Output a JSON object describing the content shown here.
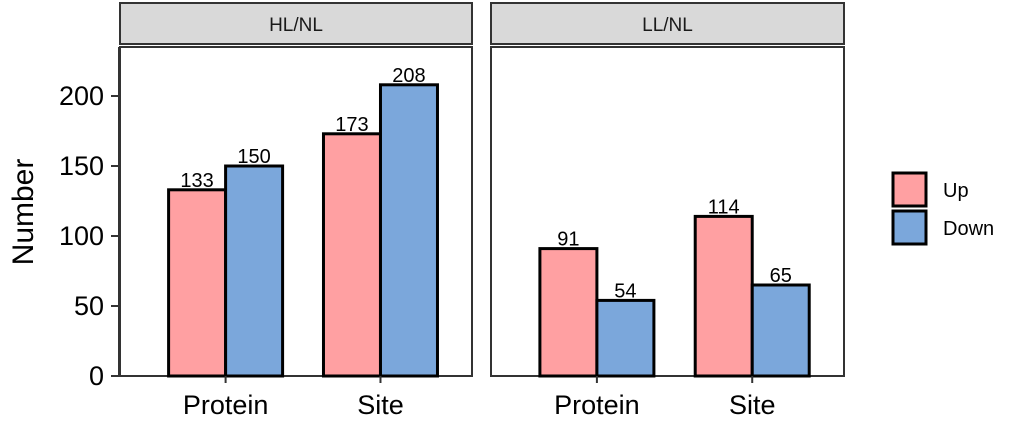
{
  "chart_data": {
    "type": "bar",
    "ylabel": "Number",
    "xlabel": "",
    "ylim": [
      0,
      235
    ],
    "yticks": [
      0,
      50,
      100,
      150,
      200
    ],
    "categories": [
      "Protein",
      "Site"
    ],
    "series_names": [
      "Up",
      "Down"
    ],
    "colors": {
      "Up": "#FFA0A2",
      "Down": "#7BA7DB"
    },
    "panels": [
      {
        "title": "HL/NL",
        "series": [
          {
            "name": "Up",
            "values": [
              133,
              173
            ]
          },
          {
            "name": "Down",
            "values": [
              150,
              208
            ]
          }
        ]
      },
      {
        "title": "LL/NL",
        "series": [
          {
            "name": "Up",
            "values": [
              91,
              114
            ]
          },
          {
            "name": "Down",
            "values": [
              54,
              65
            ]
          }
        ]
      }
    ],
    "legend": {
      "position": "right",
      "entries": [
        "Up",
        "Down"
      ]
    },
    "grid": false
  }
}
